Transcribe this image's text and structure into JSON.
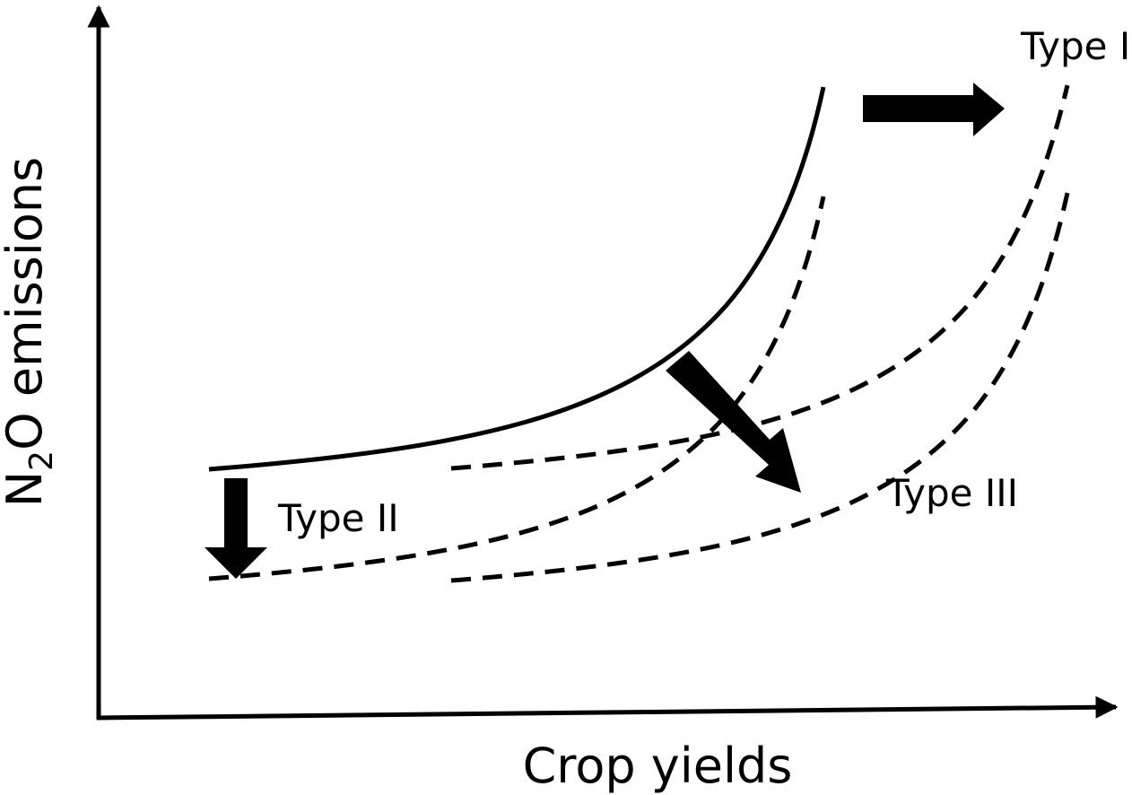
{
  "axes": {
    "x_label": "Crop yields",
    "y_label": {
      "prefix": "N",
      "subscript": "2",
      "suffix": "O emissions"
    }
  },
  "labels": {
    "type_1": "Type I",
    "type_2": "Type II",
    "type_3": "Type III"
  }
}
